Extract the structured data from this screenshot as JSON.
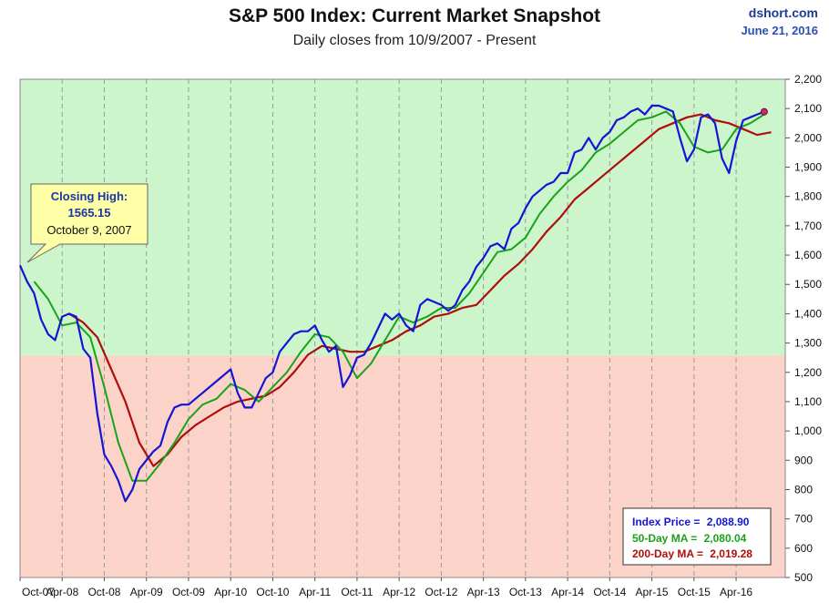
{
  "header": {
    "title": "S&P 500 Index: Current Market Snapshot",
    "subtitle": "Daily closes from 10/9/2007 - Present",
    "brand": "dshort.com",
    "date": "June 21, 2016"
  },
  "callout": {
    "heading": "Closing High:",
    "value": "1565.15",
    "date": "October 9, 2007"
  },
  "legend_box": {
    "index_label": "Index Price = ",
    "index_value": "2,088.90",
    "ma50_label": "50-Day MA = ",
    "ma50_value": "2,080.04",
    "ma200_label": "200-Day MA = ",
    "ma200_value": "2,019.28"
  },
  "colors": {
    "index": "#1515d6",
    "ma50": "#19a319",
    "ma200": "#b00d0d",
    "upper_zone": "#ccf5cc",
    "lower_zone": "#fbd3c9",
    "grid": "#9a9a9a"
  },
  "chart_data": {
    "type": "line",
    "title": "S&P 500 Index: Current Market Snapshot",
    "subtitle": "Daily closes from 10/9/2007 - Present",
    "ylim": [
      500,
      2200
    ],
    "xlim": [
      0,
      109
    ],
    "y_ticks": [
      500,
      600,
      700,
      800,
      900,
      1000,
      1100,
      1200,
      1300,
      1400,
      1500,
      1600,
      1700,
      1800,
      1900,
      2000,
      2100,
      2200
    ],
    "y_tick_labels": [
      "500",
      "600",
      "700",
      "800",
      "900",
      "1,000",
      "1,100",
      "1,200",
      "1,300",
      "1,400",
      "1,500",
      "1,600",
      "1,700",
      "1,800",
      "1,900",
      "2,000",
      "2,100",
      "2,200"
    ],
    "x_ticks": [
      0,
      6,
      12,
      18,
      24,
      30,
      36,
      42,
      48,
      54,
      60,
      66,
      72,
      78,
      84,
      90,
      96,
      102
    ],
    "x_tick_labels": [
      "Oct-07",
      "Apr-08",
      "Oct-08",
      "Apr-09",
      "Oct-09",
      "Apr-10",
      "Oct-10",
      "Apr-11",
      "Oct-11",
      "Apr-12",
      "Oct-12",
      "Apr-13",
      "Oct-13",
      "Apr-14",
      "Oct-14",
      "Apr-15",
      "Oct-15",
      "Apr-16"
    ],
    "zone_boundary": 1257,
    "grid": true,
    "series": [
      {
        "name": "Index Price",
        "x": [
          0,
          1,
          2,
          3,
          4,
          5,
          6,
          7,
          8,
          9,
          10,
          11,
          12,
          13,
          14,
          15,
          16,
          17,
          18,
          19,
          20,
          21,
          22,
          23,
          24,
          25,
          26,
          27,
          28,
          29,
          30,
          31,
          32,
          33,
          34,
          35,
          36,
          37,
          38,
          39,
          40,
          41,
          42,
          43,
          44,
          45,
          46,
          47,
          48,
          49,
          50,
          51,
          52,
          53,
          54,
          55,
          56,
          57,
          58,
          59,
          60,
          61,
          62,
          63,
          64,
          65,
          66,
          67,
          68,
          69,
          70,
          71,
          72,
          73,
          74,
          75,
          76,
          77,
          78,
          79,
          80,
          81,
          82,
          83,
          84,
          85,
          86,
          87,
          88,
          89,
          90,
          91,
          92,
          93,
          94,
          95,
          96,
          97,
          98,
          99,
          100,
          101,
          102,
          103,
          104,
          105,
          106
        ],
        "values": [
          1565,
          1510,
          1470,
          1380,
          1330,
          1310,
          1390,
          1400,
          1390,
          1280,
          1250,
          1060,
          920,
          880,
          830,
          760,
          800,
          870,
          900,
          930,
          950,
          1030,
          1080,
          1090,
          1090,
          1110,
          1130,
          1150,
          1170,
          1190,
          1210,
          1130,
          1080,
          1080,
          1130,
          1180,
          1200,
          1270,
          1300,
          1330,
          1340,
          1340,
          1360,
          1310,
          1270,
          1290,
          1150,
          1190,
          1250,
          1260,
          1300,
          1350,
          1400,
          1380,
          1400,
          1360,
          1340,
          1430,
          1450,
          1440,
          1430,
          1410,
          1430,
          1480,
          1510,
          1560,
          1590,
          1630,
          1640,
          1620,
          1690,
          1710,
          1760,
          1800,
          1820,
          1840,
          1850,
          1880,
          1880,
          1950,
          1960,
          2000,
          1960,
          2000,
          2020,
          2060,
          2070,
          2090,
          2100,
          2080,
          2110,
          2110,
          2100,
          2090,
          2000,
          1920,
          1960,
          2070,
          2080,
          2050,
          1930,
          1880,
          1990,
          2060,
          2070,
          2080,
          2089
        ]
      },
      {
        "name": "50-Day MA",
        "x": [
          2,
          4,
          6,
          8,
          10,
          12,
          14,
          16,
          18,
          20,
          22,
          24,
          26,
          28,
          30,
          32,
          34,
          36,
          38,
          40,
          42,
          44,
          46,
          48,
          50,
          52,
          54,
          56,
          58,
          60,
          62,
          64,
          66,
          68,
          70,
          72,
          74,
          76,
          78,
          80,
          82,
          84,
          86,
          88,
          90,
          92,
          94,
          96,
          98,
          100,
          102,
          104,
          106
        ],
        "values": [
          1510,
          1450,
          1360,
          1370,
          1320,
          1150,
          960,
          830,
          830,
          890,
          960,
          1040,
          1090,
          1110,
          1160,
          1140,
          1100,
          1150,
          1200,
          1270,
          1330,
          1320,
          1270,
          1180,
          1230,
          1310,
          1390,
          1370,
          1390,
          1420,
          1420,
          1470,
          1540,
          1610,
          1620,
          1660,
          1740,
          1800,
          1850,
          1890,
          1950,
          1980,
          2020,
          2060,
          2070,
          2090,
          2050,
          1970,
          1950,
          1960,
          2030,
          2050,
          2080
        ]
      },
      {
        "name": "200-Day MA",
        "x": [
          7,
          9,
          11,
          13,
          15,
          17,
          19,
          21,
          23,
          25,
          27,
          29,
          31,
          33,
          35,
          37,
          39,
          41,
          43,
          45,
          47,
          49,
          51,
          53,
          55,
          57,
          59,
          61,
          63,
          65,
          67,
          69,
          71,
          73,
          75,
          77,
          79,
          81,
          83,
          85,
          87,
          89,
          91,
          93,
          95,
          97,
          99,
          101,
          103,
          105,
          107
        ],
        "values": [
          1400,
          1370,
          1320,
          1210,
          1100,
          960,
          880,
          920,
          980,
          1020,
          1050,
          1080,
          1100,
          1110,
          1120,
          1150,
          1200,
          1260,
          1290,
          1280,
          1270,
          1270,
          1290,
          1310,
          1340,
          1360,
          1390,
          1400,
          1420,
          1430,
          1480,
          1530,
          1570,
          1620,
          1680,
          1730,
          1790,
          1830,
          1870,
          1910,
          1950,
          1990,
          2030,
          2050,
          2070,
          2080,
          2060,
          2050,
          2030,
          2010,
          2019
        ]
      }
    ]
  }
}
